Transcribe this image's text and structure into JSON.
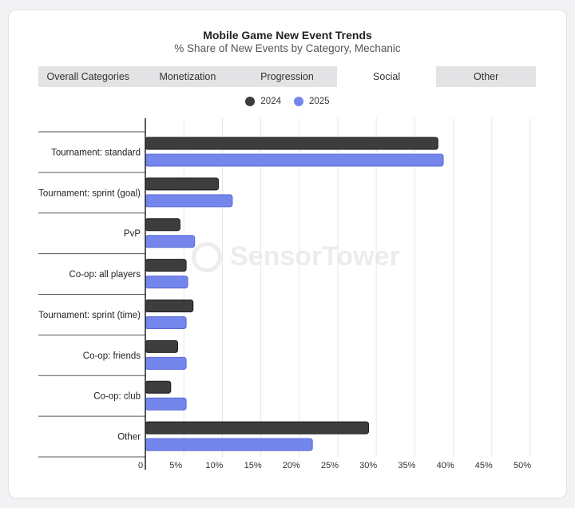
{
  "header": {
    "title": "Mobile Game New Event Trends",
    "subtitle": "% Share of New Events by Category, Mechanic"
  },
  "tabs": [
    {
      "label": "Overall Categories",
      "active": false
    },
    {
      "label": "Monetization",
      "active": false
    },
    {
      "label": "Progression",
      "active": false
    },
    {
      "label": "Social",
      "active": true
    },
    {
      "label": "Other",
      "active": false
    }
  ],
  "watermark": {
    "text": "SensorTower"
  },
  "colors": {
    "series_2024": "#3d3d3d",
    "series_2025": "#7486ec",
    "grid": "#e6e6e6",
    "axis": "#222222"
  },
  "chart_data": {
    "type": "bar",
    "orientation": "horizontal",
    "title": "Mobile Game New Event Trends",
    "subtitle": "% Share of New Events by Category, Mechanic",
    "categories": [
      "Tournament: standard",
      "Tournament: sprint (goal)",
      "PvP",
      "Co-op: all players",
      "Tournament: sprint (time)",
      "Co-op: friends",
      "Co-op: club",
      "Other"
    ],
    "series": [
      {
        "name": "2024",
        "color": "#3d3d3d",
        "values": [
          38.0,
          9.5,
          4.5,
          5.3,
          6.2,
          4.2,
          3.3,
          29.0
        ]
      },
      {
        "name": "2025",
        "color": "#7486ec",
        "values": [
          38.7,
          11.3,
          6.4,
          5.5,
          5.3,
          5.3,
          5.3,
          21.7
        ]
      }
    ],
    "xlim": [
      0,
      50
    ],
    "x_ticks": [
      "0",
      "5%",
      "10%",
      "15%",
      "20%",
      "25%",
      "30%",
      "35%",
      "40%",
      "45%",
      "50%"
    ],
    "grid": true,
    "legend_position": "top-center"
  }
}
